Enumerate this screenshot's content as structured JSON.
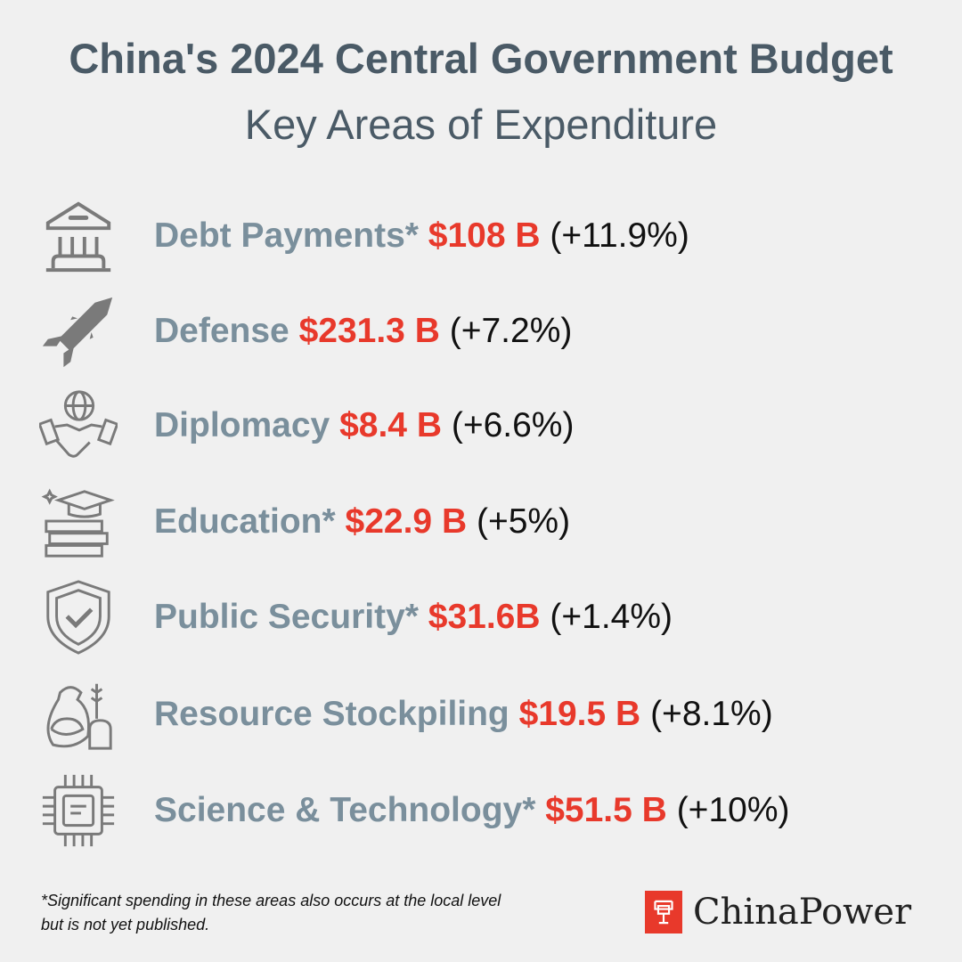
{
  "header": {
    "title": "China's 2024 Central Government Budget",
    "subtitle": "Key Areas of Expenditure"
  },
  "colors": {
    "category": "#7a8f9c",
    "amount": "#e8392b",
    "title": "#4a5a66",
    "background": "#f0f0f0"
  },
  "items": [
    {
      "icon": "bank-building-icon",
      "category": "Debt Payments*",
      "amount": "$108 B",
      "change": "(+11.9%)"
    },
    {
      "icon": "missile-icon",
      "category": "Defense",
      "amount": "$231.3 B",
      "change": "(+7.2%)"
    },
    {
      "icon": "globe-handshake-icon",
      "category": "Diplomacy",
      "amount": "$8.4 B",
      "change": "(+6.6%)"
    },
    {
      "icon": "graduation-cap-books-icon",
      "category": "Education*",
      "amount": "$22.9 B",
      "change": "(+5%)"
    },
    {
      "icon": "shield-check-icon",
      "category": "Public Security*",
      "amount": "$31.6B",
      "change": "(+1.4%)"
    },
    {
      "icon": "grain-sack-bread-icon",
      "category": "Resource Stockpiling",
      "amount": "$19.5 B",
      "change": "(+8.1%)"
    },
    {
      "icon": "microchip-icon",
      "category": "Science & Technology*",
      "amount": "$51.5 B",
      "change": "(+10%)"
    }
  ],
  "footnote": {
    "line1": "*Significant spending in these areas also occurs at the local level",
    "line2": "but is not yet published."
  },
  "logo": {
    "text": "ChinaPower"
  }
}
